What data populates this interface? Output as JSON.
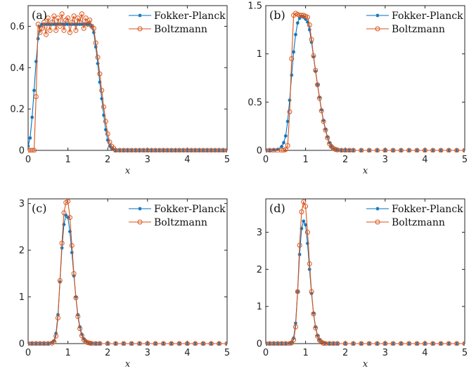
{
  "figure": {
    "colors": {
      "fokker_planck": "#0072BD",
      "boltzmann": "#D95319"
    }
  },
  "chart_data": [
    {
      "type": "line",
      "panel_label": "(a)",
      "xlabel": "x",
      "ylabel": "",
      "xlim": [
        0,
        5
      ],
      "ylim": [
        0,
        0.7
      ],
      "xticks": [
        0,
        1,
        2,
        3,
        4,
        5
      ],
      "yticks": [
        0,
        0.2,
        0.4,
        0.6
      ],
      "ytick_labels": [
        "0",
        "0.2",
        "0.4",
        "0.6"
      ],
      "legend_position": "top-right",
      "grid": false,
      "series": [
        {
          "name": "Fokker-Planck",
          "marker": "asterisk",
          "x": [
            0,
            0.05,
            0.1,
            0.15,
            0.2,
            0.25,
            0.3,
            0.35,
            0.4,
            0.45,
            0.5,
            0.55,
            0.6,
            0.65,
            0.7,
            0.75,
            0.8,
            0.85,
            0.9,
            0.95,
            1.0,
            1.05,
            1.1,
            1.15,
            1.2,
            1.25,
            1.3,
            1.35,
            1.4,
            1.45,
            1.5,
            1.55,
            1.6,
            1.65,
            1.7,
            1.75,
            1.8,
            1.85,
            1.9,
            1.95,
            2.0,
            2.05,
            2.1,
            2.15,
            2.2,
            2.3,
            2.4,
            2.5,
            2.6,
            2.7,
            2.8,
            2.9,
            3.0,
            3.1,
            3.2,
            3.3,
            3.4,
            3.5,
            3.6,
            3.7,
            3.8,
            3.9,
            4.0,
            4.1,
            4.2,
            4.3,
            4.4,
            4.5,
            4.6,
            4.7,
            4.8,
            4.9,
            5.0
          ],
          "y": [
            0.02,
            0.06,
            0.16,
            0.29,
            0.43,
            0.54,
            0.6,
            0.61,
            0.61,
            0.61,
            0.61,
            0.61,
            0.61,
            0.61,
            0.61,
            0.61,
            0.61,
            0.61,
            0.61,
            0.61,
            0.61,
            0.61,
            0.61,
            0.61,
            0.61,
            0.61,
            0.61,
            0.61,
            0.61,
            0.61,
            0.61,
            0.61,
            0.6,
            0.57,
            0.5,
            0.42,
            0.33,
            0.25,
            0.17,
            0.1,
            0.05,
            0.02,
            0.01,
            0.005,
            0,
            0,
            0,
            0,
            0,
            0,
            0,
            0,
            0,
            0,
            0,
            0,
            0,
            0,
            0,
            0,
            0,
            0,
            0,
            0,
            0,
            0,
            0,
            0,
            0,
            0,
            0,
            0,
            0
          ]
        },
        {
          "name": "Boltzmann",
          "marker": "circle",
          "x": [
            0,
            0.05,
            0.1,
            0.15,
            0.2,
            0.25,
            0.3,
            0.35,
            0.4,
            0.45,
            0.5,
            0.55,
            0.6,
            0.65,
            0.7,
            0.75,
            0.8,
            0.85,
            0.9,
            0.95,
            1.0,
            1.05,
            1.1,
            1.15,
            1.2,
            1.25,
            1.3,
            1.35,
            1.4,
            1.45,
            1.5,
            1.55,
            1.6,
            1.65,
            1.7,
            1.75,
            1.8,
            1.85,
            1.9,
            1.95,
            2.0,
            2.05,
            2.1,
            2.15,
            2.2,
            2.3,
            2.4,
            2.5,
            2.6,
            2.7,
            2.8,
            2.9,
            3.0,
            3.1,
            3.2,
            3.3,
            3.4,
            3.5,
            3.6,
            3.7,
            3.8,
            3.9,
            4.0,
            4.1,
            4.2,
            4.3,
            4.4,
            4.5,
            4.6,
            4.7,
            4.8,
            4.9,
            5.0
          ],
          "y": [
            0,
            0,
            0,
            0,
            0.26,
            0.61,
            0.57,
            0.59,
            0.62,
            0.56,
            0.64,
            0.58,
            0.62,
            0.65,
            0.58,
            0.64,
            0.6,
            0.66,
            0.58,
            0.63,
            0.64,
            0.57,
            0.62,
            0.65,
            0.58,
            0.64,
            0.62,
            0.66,
            0.59,
            0.64,
            0.61,
            0.63,
            0.6,
            0.59,
            0.52,
            0.45,
            0.37,
            0.29,
            0.21,
            0.14,
            0.08,
            0.04,
            0.02,
            0.01,
            0,
            0,
            0,
            0,
            0,
            0,
            0,
            0,
            0,
            0,
            0,
            0,
            0,
            0,
            0,
            0,
            0,
            0,
            0,
            0,
            0,
            0,
            0,
            0,
            0,
            0,
            0,
            0,
            0
          ]
        }
      ]
    },
    {
      "type": "line",
      "panel_label": "(b)",
      "xlabel": "x",
      "ylabel": "",
      "xlim": [
        0,
        5
      ],
      "ylim": [
        0,
        1.5
      ],
      "xticks": [
        0,
        1,
        2,
        3,
        4,
        5
      ],
      "yticks": [
        0,
        0.5,
        1,
        1.5
      ],
      "ytick_labels": [
        "0",
        "0.5",
        "1",
        "1.5"
      ],
      "legend_position": "top-right",
      "grid": false,
      "series": [
        {
          "name": "Fokker-Planck",
          "marker": "asterisk",
          "x": [
            0,
            0.1,
            0.2,
            0.3,
            0.4,
            0.45,
            0.5,
            0.55,
            0.6,
            0.65,
            0.7,
            0.75,
            0.8,
            0.85,
            0.9,
            0.95,
            1.0,
            1.05,
            1.1,
            1.15,
            1.2,
            1.25,
            1.3,
            1.35,
            1.4,
            1.45,
            1.5,
            1.55,
            1.6,
            1.65,
            1.7,
            1.75,
            1.8,
            1.9,
            2.0,
            2.1,
            2.2,
            2.4,
            2.6,
            2.8,
            3.0,
            3.2,
            3.4,
            3.6,
            3.8,
            4.0,
            4.2,
            4.4,
            4.6,
            4.8,
            5.0
          ],
          "y": [
            0,
            0,
            0.005,
            0.01,
            0.04,
            0.08,
            0.15,
            0.3,
            0.52,
            0.78,
            1.02,
            1.2,
            1.32,
            1.37,
            1.39,
            1.38,
            1.36,
            1.33,
            1.25,
            1.12,
            0.97,
            0.82,
            0.68,
            0.55,
            0.42,
            0.31,
            0.22,
            0.14,
            0.08,
            0.04,
            0.02,
            0.01,
            0.005,
            0,
            0,
            0,
            0,
            0,
            0,
            0,
            0,
            0,
            0,
            0,
            0,
            0,
            0,
            0,
            0,
            0,
            0
          ]
        },
        {
          "name": "Boltzmann",
          "marker": "circle",
          "x": [
            0,
            0.1,
            0.2,
            0.3,
            0.4,
            0.45,
            0.5,
            0.55,
            0.6,
            0.65,
            0.7,
            0.75,
            0.8,
            0.85,
            0.9,
            0.95,
            1.0,
            1.05,
            1.1,
            1.15,
            1.2,
            1.25,
            1.3,
            1.35,
            1.4,
            1.45,
            1.5,
            1.55,
            1.6,
            1.65,
            1.7,
            1.75,
            1.8,
            1.9,
            2.0,
            2.1,
            2.2,
            2.4,
            2.6,
            2.8,
            3.0,
            3.2,
            3.4,
            3.6,
            3.8,
            4.0,
            4.2,
            4.4,
            4.6,
            4.8,
            5.0
          ],
          "y": [
            0,
            0,
            0,
            0,
            0,
            0,
            0.01,
            0.05,
            0.4,
            0.95,
            1.4,
            1.42,
            1.41,
            1.4,
            1.4,
            1.4,
            1.39,
            1.38,
            1.3,
            1.15,
            0.98,
            0.83,
            0.68,
            0.54,
            0.41,
            0.3,
            0.21,
            0.13,
            0.07,
            0.04,
            0.02,
            0.01,
            0.005,
            0,
            0,
            0,
            0,
            0,
            0,
            0,
            0,
            0,
            0,
            0,
            0,
            0,
            0,
            0,
            0,
            0,
            0
          ]
        }
      ]
    },
    {
      "type": "line",
      "panel_label": "(c)",
      "xlabel": "x",
      "ylabel": "",
      "xlim": [
        0,
        5
      ],
      "ylim": [
        0,
        3.1
      ],
      "xticks": [
        0,
        1,
        2,
        3,
        4,
        5
      ],
      "yticks": [
        0,
        1,
        2,
        3
      ],
      "ytick_labels": [
        "0",
        "1",
        "2",
        "3"
      ],
      "legend_position": "top-right",
      "grid": false,
      "series": [
        {
          "name": "Fokker-Planck",
          "marker": "asterisk",
          "x": [
            0,
            0.1,
            0.2,
            0.3,
            0.4,
            0.5,
            0.6,
            0.65,
            0.7,
            0.75,
            0.8,
            0.85,
            0.9,
            0.95,
            1.0,
            1.05,
            1.1,
            1.15,
            1.2,
            1.25,
            1.3,
            1.35,
            1.4,
            1.45,
            1.5,
            1.55,
            1.6,
            1.7,
            1.8,
            2.0,
            2.2,
            2.4,
            2.6,
            2.8,
            3.0,
            3.2,
            3.4,
            3.6,
            3.8,
            4.0,
            4.2,
            4.4,
            4.6,
            4.8,
            5.0
          ],
          "y": [
            0,
            0,
            0,
            0,
            0,
            0,
            0.02,
            0.06,
            0.22,
            0.62,
            1.32,
            2.05,
            2.55,
            2.75,
            2.7,
            2.4,
            1.95,
            1.45,
            1.0,
            0.62,
            0.36,
            0.2,
            0.1,
            0.05,
            0.02,
            0.01,
            0.005,
            0,
            0,
            0,
            0,
            0,
            0,
            0,
            0,
            0,
            0,
            0,
            0,
            0,
            0,
            0,
            0,
            0,
            0
          ]
        },
        {
          "name": "Boltzmann",
          "marker": "circle",
          "x": [
            0,
            0.1,
            0.2,
            0.3,
            0.4,
            0.5,
            0.6,
            0.65,
            0.7,
            0.75,
            0.8,
            0.85,
            0.9,
            0.95,
            1.0,
            1.05,
            1.1,
            1.15,
            1.2,
            1.25,
            1.3,
            1.35,
            1.4,
            1.45,
            1.5,
            1.55,
            1.6,
            1.7,
            1.8,
            2.0,
            2.2,
            2.4,
            2.6,
            2.8,
            3.0,
            3.2,
            3.4,
            3.6,
            3.8,
            4.0,
            4.2,
            4.4,
            4.6,
            4.8,
            5.0
          ],
          "y": [
            0,
            0,
            0,
            0,
            0,
            0,
            0.01,
            0.04,
            0.16,
            0.55,
            1.35,
            2.15,
            2.8,
            3.02,
            3.05,
            2.7,
            2.1,
            1.5,
            0.98,
            0.58,
            0.32,
            0.17,
            0.08,
            0.04,
            0.02,
            0.01,
            0,
            0,
            0,
            0,
            0,
            0,
            0,
            0,
            0,
            0,
            0,
            0,
            0,
            0,
            0,
            0,
            0,
            0,
            0
          ]
        }
      ]
    },
    {
      "type": "line",
      "panel_label": "(d)",
      "xlabel": "x",
      "ylabel": "",
      "xlim": [
        0,
        5
      ],
      "ylim": [
        0,
        3.9
      ],
      "xticks": [
        0,
        1,
        2,
        3,
        4,
        5
      ],
      "yticks": [
        0,
        1,
        2,
        3
      ],
      "ytick_labels": [
        "0",
        "1",
        "2",
        "3"
      ],
      "legend_position": "top-right",
      "grid": false,
      "series": [
        {
          "name": "Fokker-Planck",
          "marker": "asterisk",
          "x": [
            0,
            0.1,
            0.2,
            0.3,
            0.4,
            0.5,
            0.6,
            0.65,
            0.7,
            0.75,
            0.8,
            0.85,
            0.9,
            0.95,
            1.0,
            1.05,
            1.1,
            1.15,
            1.2,
            1.25,
            1.3,
            1.35,
            1.4,
            1.45,
            1.5,
            1.6,
            1.7,
            1.8,
            2.0,
            2.2,
            2.4,
            2.6,
            2.8,
            3.0,
            3.2,
            3.4,
            3.6,
            3.8,
            4.0,
            4.2,
            4.4,
            4.6,
            4.8,
            5.0
          ],
          "y": [
            0,
            0,
            0,
            0,
            0,
            0,
            0.01,
            0.03,
            0.15,
            0.55,
            1.4,
            2.4,
            3.1,
            3.3,
            3.2,
            2.7,
            2.0,
            1.35,
            0.82,
            0.45,
            0.22,
            0.1,
            0.04,
            0.02,
            0.01,
            0,
            0,
            0,
            0,
            0,
            0,
            0,
            0,
            0,
            0,
            0,
            0,
            0,
            0,
            0,
            0,
            0,
            0,
            0
          ]
        },
        {
          "name": "Boltzmann",
          "marker": "circle",
          "x": [
            0,
            0.1,
            0.2,
            0.3,
            0.4,
            0.5,
            0.6,
            0.65,
            0.7,
            0.75,
            0.8,
            0.85,
            0.9,
            0.95,
            1.0,
            1.05,
            1.1,
            1.15,
            1.2,
            1.25,
            1.3,
            1.35,
            1.4,
            1.45,
            1.5,
            1.6,
            1.7,
            1.8,
            2.0,
            2.2,
            2.4,
            2.6,
            2.8,
            3.0,
            3.2,
            3.4,
            3.6,
            3.8,
            4.0,
            4.2,
            4.4,
            4.6,
            4.8,
            5.0
          ],
          "y": [
            0,
            0,
            0,
            0,
            0,
            0,
            0,
            0.02,
            0.1,
            0.45,
            1.4,
            2.65,
            3.55,
            3.82,
            3.7,
            3.0,
            2.15,
            1.4,
            0.8,
            0.42,
            0.2,
            0.09,
            0.04,
            0.01,
            0,
            0,
            0,
            0,
            0,
            0,
            0,
            0,
            0,
            0,
            0,
            0,
            0,
            0,
            0,
            0,
            0,
            0,
            0,
            0
          ]
        }
      ]
    }
  ]
}
